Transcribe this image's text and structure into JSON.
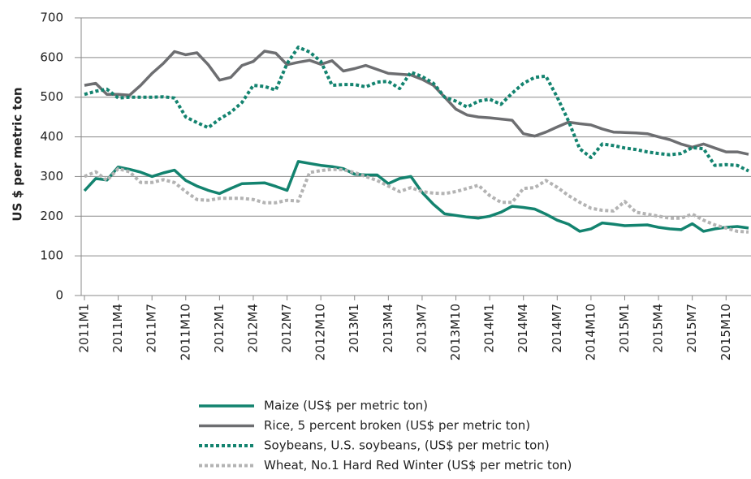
{
  "chart_data": {
    "type": "line",
    "y_label": "US $ per metric ton",
    "categories": [
      "2011M1",
      null,
      null,
      "2011M4",
      null,
      null,
      "2011M7",
      null,
      null,
      "2011M10",
      null,
      null,
      "2012M1",
      null,
      null,
      "2012M4",
      null,
      null,
      "2012M7",
      null,
      null,
      "2012M10",
      null,
      null,
      "2013M1",
      null,
      null,
      "2013M4",
      null,
      null,
      "2013M7",
      null,
      null,
      "2013M10",
      null,
      null,
      "2014M1",
      null,
      null,
      "2014M4",
      null,
      null,
      "2014M7",
      null,
      null,
      "2014M10",
      null,
      null,
      "2015M1",
      null,
      null,
      "2015M4",
      null,
      null,
      "2015M7",
      null,
      null,
      "2015M10",
      null,
      null
    ],
    "ylim": [
      0,
      700
    ],
    "yticks": [
      0,
      100,
      200,
      300,
      400,
      500,
      600,
      700
    ],
    "grid": true,
    "legend": "bottom",
    "series": [
      {
        "name": "Maize (US$ per metric ton)",
        "color": "#13836f",
        "style": "solid",
        "values": [
          264,
          295,
          291,
          324,
          318,
          311,
          300,
          309,
          316,
          290,
          276,
          265,
          257,
          270,
          282,
          283,
          284,
          275,
          265,
          338,
          333,
          328,
          325,
          320,
          306,
          304,
          304,
          282,
          295,
          300,
          260,
          230,
          206,
          202,
          198,
          195,
          200,
          210,
          225,
          222,
          218,
          205,
          190,
          180,
          162,
          168,
          183,
          180,
          176,
          177,
          178,
          172,
          168,
          166,
          181,
          162,
          168,
          172,
          174,
          170
        ]
      },
      {
        "name": "Rice, 5 percent broken (US$ per metric ton)",
        "color": "#6d6e71",
        "style": "solid",
        "values": [
          530,
          535,
          507,
          507,
          505,
          530,
          560,
          585,
          615,
          607,
          612,
          582,
          543,
          550,
          580,
          590,
          616,
          611,
          582,
          588,
          593,
          583,
          592,
          566,
          572,
          580,
          570,
          560,
          558,
          556,
          545,
          530,
          500,
          470,
          455,
          450,
          448,
          445,
          442,
          408,
          402,
          412,
          425,
          437,
          433,
          430,
          420,
          412,
          411,
          410,
          408,
          400,
          393,
          382,
          374,
          382,
          372,
          362,
          362,
          356
        ]
      },
      {
        "name": "Soybeans, U.S. soybeans, (US$ per metric ton)",
        "color": "#13836f",
        "style": "dotted",
        "values": [
          507,
          515,
          520,
          498,
          500,
          500,
          500,
          501,
          498,
          450,
          436,
          423,
          445,
          462,
          487,
          530,
          527,
          518,
          585,
          626,
          614,
          590,
          530,
          532,
          532,
          526,
          538,
          540,
          522,
          563,
          552,
          535,
          500,
          490,
          475,
          490,
          495,
          482,
          510,
          535,
          550,
          553,
          500,
          440,
          370,
          348,
          382,
          378,
          372,
          368,
          362,
          358,
          355,
          358,
          373,
          370,
          328,
          330,
          328,
          314
        ]
      },
      {
        "name": "Wheat, No.1 Hard Red Winter (US$ per metric ton)",
        "color": "#b3b3b3",
        "style": "dotted",
        "values": [
          300,
          312,
          290,
          320,
          312,
          285,
          285,
          292,
          285,
          262,
          242,
          240,
          245,
          245,
          245,
          242,
          234,
          234,
          240,
          238,
          310,
          315,
          318,
          317,
          310,
          300,
          290,
          276,
          262,
          272,
          262,
          258,
          257,
          262,
          270,
          278,
          252,
          235,
          235,
          270,
          272,
          290,
          273,
          252,
          235,
          220,
          215,
          213,
          237,
          210,
          205,
          200,
          195,
          195,
          205,
          190,
          178,
          170,
          162,
          160
        ]
      }
    ]
  }
}
